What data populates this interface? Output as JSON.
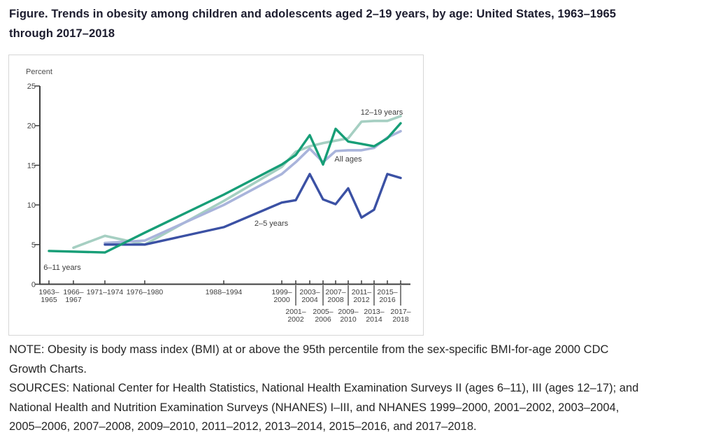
{
  "page": {
    "title_lines": [
      "Figure. Trends in obesity among children and adolescents aged 2–19 years, by age: United States, 1963–1965",
      "through 2017–2018"
    ]
  },
  "notes": {
    "note_lines": [
      "NOTE: Obesity is body mass index (BMI) at or above the 95th percentile from the sex-specific BMI-for-age 2000 CDC",
      "Growth Charts."
    ],
    "sources_lines": [
      "SOURCES: National Center for Health Statistics, National Health Examination Surveys II (ages 6–11), III (ages 12–17); and",
      "National Health and Nutrition Examination Surveys (NHANES) I–III, and NHANES 1999–2000, 2001–2002, 2003–2004,",
      "2005–2006, 2007–2008, 2009–2010, 2011–2012, 2013–2014, 2015–2016, and 2017–2018."
    ]
  },
  "chart_data": {
    "type": "line",
    "title": "Trends in obesity among children and adolescents aged 2–19 years, by age: United States, 1963–1965 through 2017–2018",
    "ylabel": "Percent",
    "xlabel": "",
    "ylim": [
      0,
      25
    ],
    "yticks": [
      0,
      5,
      10,
      15,
      20,
      25
    ],
    "grid": false,
    "legend_position": "inline-annotations",
    "categories": [
      "1963–1965",
      "1966–1967",
      "1971–1974",
      "1976–1980",
      "1988–1994",
      "1999–2000",
      "2001–2002",
      "2003–2004",
      "2005–2006",
      "2007–2008",
      "2009–2010",
      "2011–2012",
      "2013–2014",
      "2015–2016",
      "2017–2018"
    ],
    "series": [
      {
        "name": "12–19 years",
        "color": "#a6cfc2",
        "points": [
          [
            1,
            4.6
          ],
          [
            2,
            6.1
          ],
          [
            3,
            5.0
          ],
          [
            4,
            10.5
          ],
          [
            5,
            14.8
          ],
          [
            6,
            16.7
          ],
          [
            7,
            17.4
          ],
          [
            8,
            17.8
          ],
          [
            9,
            18.1
          ],
          [
            10,
            18.4
          ],
          [
            11,
            20.5
          ],
          [
            12,
            20.6
          ],
          [
            13,
            20.6
          ],
          [
            14,
            21.2
          ]
        ]
      },
      {
        "name": "All ages",
        "color": "#a9b4db",
        "points": [
          [
            2,
            5.2
          ],
          [
            3,
            5.5
          ],
          [
            4,
            10.0
          ],
          [
            5,
            13.9
          ],
          [
            6,
            15.4
          ],
          [
            7,
            17.1
          ],
          [
            8,
            15.4
          ],
          [
            9,
            16.8
          ],
          [
            10,
            16.9
          ],
          [
            11,
            16.9
          ],
          [
            12,
            17.2
          ],
          [
            13,
            18.5
          ],
          [
            14,
            19.3
          ]
        ]
      },
      {
        "name": "2–5 years",
        "color": "#3b51a4",
        "points": [
          [
            2,
            5.0
          ],
          [
            3,
            5.0
          ],
          [
            4,
            7.2
          ],
          [
            5,
            10.3
          ],
          [
            6,
            10.6
          ],
          [
            7,
            13.9
          ],
          [
            8,
            10.7
          ],
          [
            9,
            10.1
          ],
          [
            10,
            12.1
          ],
          [
            11,
            8.4
          ],
          [
            12,
            9.4
          ],
          [
            13,
            13.9
          ],
          [
            14,
            13.4
          ]
        ]
      },
      {
        "name": "6–11 years",
        "color": "#179e77",
        "points": [
          [
            0,
            4.2
          ],
          [
            2,
            4.0
          ],
          [
            3,
            6.5
          ],
          [
            4,
            11.3
          ],
          [
            5,
            15.1
          ],
          [
            6,
            16.3
          ],
          [
            7,
            18.8
          ],
          [
            8,
            15.1
          ],
          [
            9,
            19.6
          ],
          [
            10,
            18.0
          ],
          [
            11,
            17.7
          ],
          [
            12,
            17.4
          ],
          [
            13,
            18.4
          ],
          [
            14,
            20.3
          ]
        ]
      }
    ],
    "annotation_labels": [
      "12–19 years",
      "All ages",
      "2–5 years",
      "6–11 years"
    ],
    "axis_unit_label": "Percent"
  }
}
